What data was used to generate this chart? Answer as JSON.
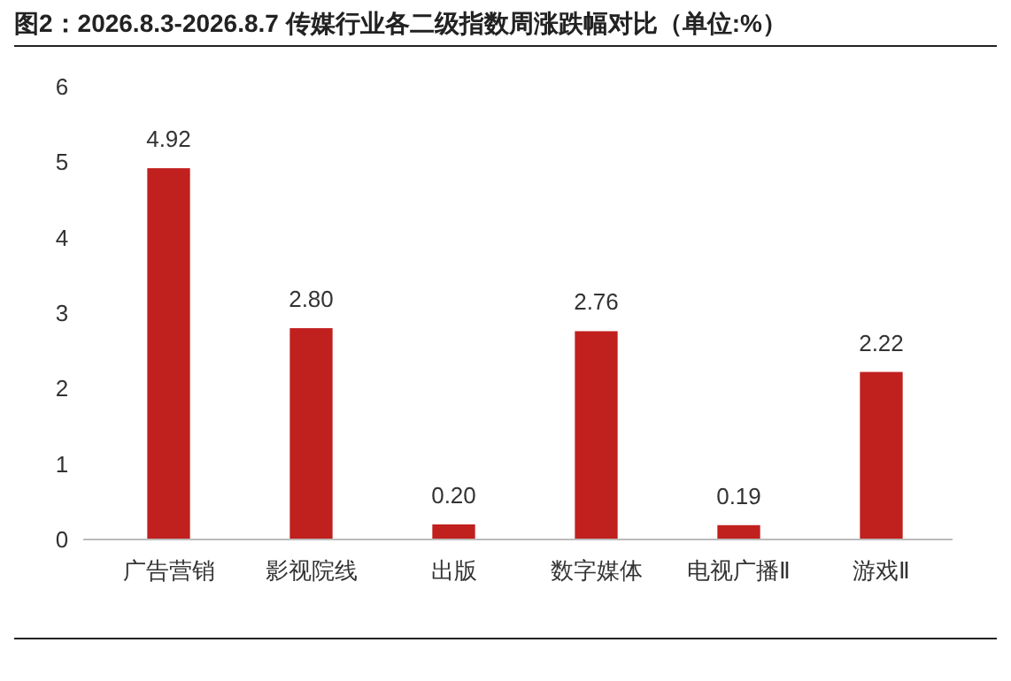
{
  "chart_data": {
    "type": "bar",
    "title": "图2：2026.8.3-2026.8.7 传媒行业各二级指数周涨跌幅对比（单位:%）",
    "categories": [
      "广告营销",
      "影视院线",
      "出版",
      "数字媒体",
      "电视广播Ⅱ",
      "游戏Ⅱ"
    ],
    "values": [
      4.92,
      2.8,
      0.2,
      2.76,
      0.19,
      2.22
    ],
    "value_labels": [
      "4.92",
      "2.80",
      "0.20",
      "2.76",
      "0.19",
      "2.22"
    ],
    "color": "#c0201e",
    "ylim": [
      0,
      6
    ],
    "yticks": [
      0,
      1,
      2,
      3,
      4,
      5,
      6
    ],
    "grid": false
  }
}
